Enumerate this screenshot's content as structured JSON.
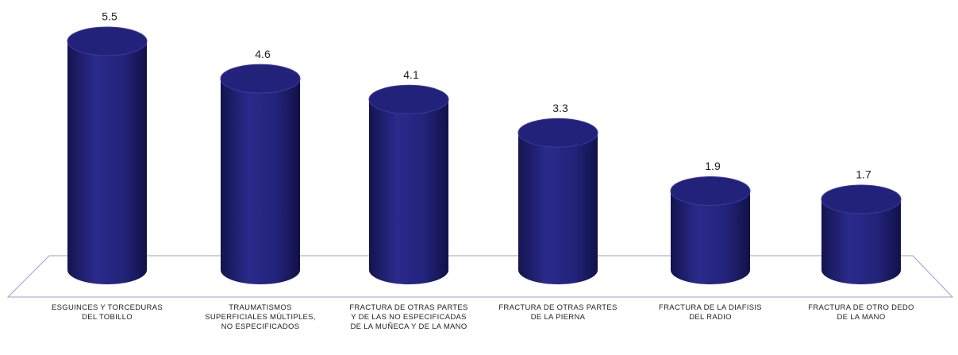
{
  "chart_data": {
    "type": "bar3d",
    "categories": [
      "ESGUINCES Y TORCEDURAS DEL TOBILLO",
      "TRAUMATISMOS SUPERFICIALES MÚLTIPLES, NO ESPECIFICADOS",
      "FRACTURA DE OTRAS PARTES Y DE LAS NO ESPECIFICADAS DE LA MUÑECA Y DE LA MANO",
      "FRACTURA DE OTRAS PARTES DE LA PIERNA",
      "FRACTURA DE LA DIAFISIS DEL RADIO",
      "FRACTURA DE OTRO DEDO DE LA MANO"
    ],
    "values": [
      5.5,
      4.6,
      4.1,
      3.3,
      1.9,
      1.7
    ],
    "color": "#22227a"
  }
}
